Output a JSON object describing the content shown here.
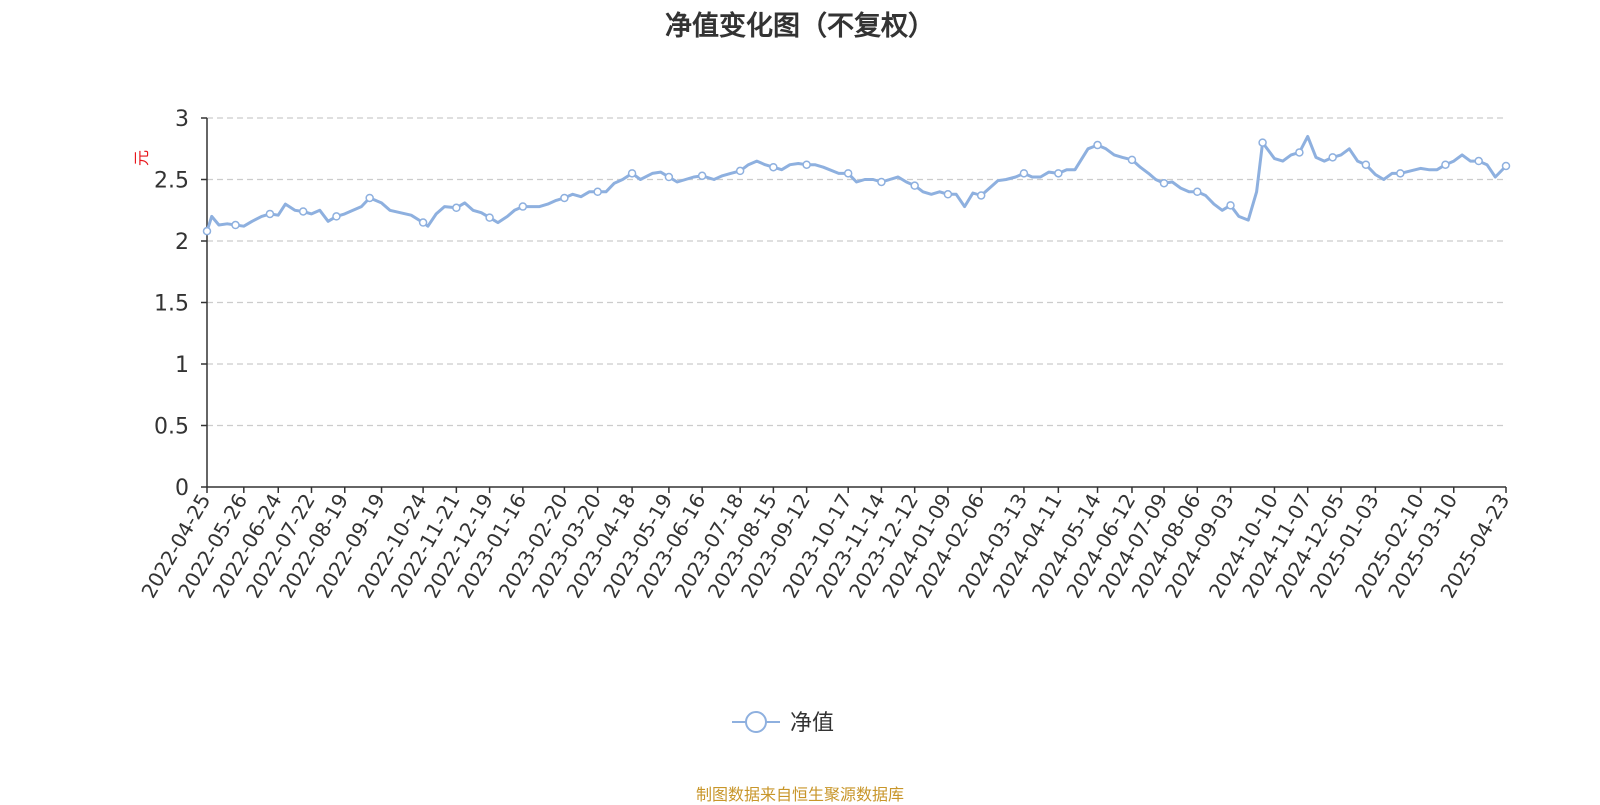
{
  "title": "净值变化图（不复权）",
  "source_note": "制图数据来自恒生聚源数据库",
  "colors": {
    "line": "#8EB0DF",
    "axis": "#333333",
    "grid": "#CCCCCC",
    "unit_label": "#E8171C",
    "source_note": "#C8962A",
    "text": "#333333"
  },
  "chart_data": {
    "type": "line",
    "title": "净值变化图（不复权）",
    "ylabel": "元",
    "ylim": [
      0,
      3
    ],
    "yticks": [
      0,
      0.5,
      1,
      1.5,
      2,
      2.5,
      3
    ],
    "ytick_labels": [
      "0",
      "0.5",
      "1",
      "1.5",
      "2",
      "2.5",
      "3"
    ],
    "grid": true,
    "legend_position": "bottom-center",
    "x_range": [
      "2022-04-25",
      "2025-04-23"
    ],
    "xtick_labels": [
      "2022-04-25",
      "2022-05-26",
      "2022-06-24",
      "2022-07-22",
      "2022-08-19",
      "2022-09-19",
      "2022-10-24",
      "2022-11-21",
      "2022-12-19",
      "2023-01-16",
      "2023-02-20",
      "2023-03-20",
      "2023-04-18",
      "2023-05-19",
      "2023-06-16",
      "2023-07-18",
      "2023-08-15",
      "2023-09-12",
      "2023-10-17",
      "2023-11-14",
      "2023-12-12",
      "2024-01-09",
      "2024-02-06",
      "2024-03-13",
      "2024-04-11",
      "2024-05-14",
      "2024-06-12",
      "2024-07-09",
      "2024-08-06",
      "2024-09-03",
      "2024-10-10",
      "2024-11-07",
      "2024-12-05",
      "2025-01-03",
      "2025-02-10",
      "2025-03-10",
      "2025-04-23"
    ],
    "series": [
      {
        "name": "净值",
        "color": "#8EB0DF",
        "x": [
          "2022-04-25",
          "2022-04-29",
          "2022-05-05",
          "2022-05-12",
          "2022-05-19",
          "2022-05-26",
          "2022-06-02",
          "2022-06-10",
          "2022-06-17",
          "2022-06-24",
          "2022-06-30",
          "2022-07-08",
          "2022-07-15",
          "2022-07-22",
          "2022-07-29",
          "2022-08-05",
          "2022-08-12",
          "2022-08-19",
          "2022-08-26",
          "2022-09-02",
          "2022-09-09",
          "2022-09-19",
          "2022-09-26",
          "2022-10-14",
          "2022-10-24",
          "2022-10-28",
          "2022-11-04",
          "2022-11-11",
          "2022-11-21",
          "2022-11-28",
          "2022-12-05",
          "2022-12-12",
          "2022-12-19",
          "2022-12-26",
          "2023-01-03",
          "2023-01-09",
          "2023-01-16",
          "2023-01-30",
          "2023-02-06",
          "2023-02-13",
          "2023-02-20",
          "2023-02-27",
          "2023-03-06",
          "2023-03-13",
          "2023-03-20",
          "2023-03-27",
          "2023-04-03",
          "2023-04-10",
          "2023-04-18",
          "2023-04-25",
          "2023-05-05",
          "2023-05-12",
          "2023-05-19",
          "2023-05-26",
          "2023-06-02",
          "2023-06-09",
          "2023-06-16",
          "2023-06-26",
          "2023-07-03",
          "2023-07-10",
          "2023-07-18",
          "2023-07-25",
          "2023-08-01",
          "2023-08-08",
          "2023-08-15",
          "2023-08-22",
          "2023-08-29",
          "2023-09-05",
          "2023-09-12",
          "2023-09-19",
          "2023-09-26",
          "2023-10-09",
          "2023-10-17",
          "2023-10-24",
          "2023-10-31",
          "2023-11-07",
          "2023-11-14",
          "2023-11-21",
          "2023-11-28",
          "2023-12-05",
          "2023-12-12",
          "2023-12-19",
          "2023-12-26",
          "2024-01-02",
          "2024-01-09",
          "2024-01-16",
          "2024-01-23",
          "2024-01-30",
          "2024-02-06",
          "2024-02-20",
          "2024-02-27",
          "2024-03-06",
          "2024-03-13",
          "2024-03-20",
          "2024-03-27",
          "2024-04-03",
          "2024-04-11",
          "2024-04-18",
          "2024-04-25",
          "2024-05-06",
          "2024-05-14",
          "2024-05-21",
          "2024-05-28",
          "2024-06-04",
          "2024-06-12",
          "2024-06-19",
          "2024-06-26",
          "2024-07-02",
          "2024-07-09",
          "2024-07-16",
          "2024-07-23",
          "2024-07-30",
          "2024-08-06",
          "2024-08-13",
          "2024-08-20",
          "2024-08-27",
          "2024-09-03",
          "2024-09-10",
          "2024-09-18",
          "2024-09-25",
          "2024-09-30",
          "2024-10-10",
          "2024-10-17",
          "2024-10-24",
          "2024-10-31",
          "2024-11-07",
          "2024-11-14",
          "2024-11-21",
          "2024-11-28",
          "2024-12-05",
          "2024-12-12",
          "2024-12-19",
          "2024-12-26",
          "2025-01-03",
          "2025-01-10",
          "2025-01-17",
          "2025-01-24",
          "2025-02-10",
          "2025-02-17",
          "2025-02-24",
          "2025-03-03",
          "2025-03-10",
          "2025-03-17",
          "2025-03-24",
          "2025-03-31",
          "2025-04-07",
          "2025-04-14",
          "2025-04-23"
        ],
        "values": [
          2.08,
          2.2,
          2.13,
          2.14,
          2.13,
          2.12,
          2.16,
          2.2,
          2.22,
          2.21,
          2.3,
          2.25,
          2.24,
          2.22,
          2.25,
          2.16,
          2.2,
          2.22,
          2.25,
          2.28,
          2.35,
          2.31,
          2.25,
          2.21,
          2.15,
          2.12,
          2.22,
          2.28,
          2.27,
          2.31,
          2.25,
          2.23,
          2.19,
          2.15,
          2.2,
          2.25,
          2.28,
          2.28,
          2.3,
          2.33,
          2.35,
          2.38,
          2.36,
          2.4,
          2.4,
          2.4,
          2.47,
          2.5,
          2.55,
          2.5,
          2.55,
          2.56,
          2.52,
          2.48,
          2.5,
          2.52,
          2.53,
          2.5,
          2.53,
          2.55,
          2.57,
          2.62,
          2.65,
          2.62,
          2.6,
          2.58,
          2.62,
          2.63,
          2.62,
          2.62,
          2.6,
          2.55,
          2.55,
          2.48,
          2.5,
          2.5,
          2.48,
          2.5,
          2.52,
          2.48,
          2.45,
          2.4,
          2.38,
          2.4,
          2.38,
          2.38,
          2.28,
          2.39,
          2.37,
          2.49,
          2.5,
          2.52,
          2.55,
          2.52,
          2.52,
          2.56,
          2.55,
          2.58,
          2.58,
          2.75,
          2.78,
          2.75,
          2.7,
          2.68,
          2.66,
          2.6,
          2.55,
          2.5,
          2.47,
          2.48,
          2.43,
          2.4,
          2.4,
          2.37,
          2.3,
          2.25,
          2.29,
          2.2,
          2.17,
          2.4,
          2.8,
          2.67,
          2.65,
          2.7,
          2.72,
          2.85,
          2.68,
          2.65,
          2.68,
          2.7,
          2.75,
          2.65,
          2.62,
          2.54,
          2.5,
          2.55,
          2.55,
          2.59,
          2.58,
          2.58,
          2.62,
          2.65,
          2.7,
          2.65,
          2.65,
          2.62,
          2.52,
          2.61
        ]
      }
    ]
  },
  "legend": {
    "label": "净值"
  }
}
